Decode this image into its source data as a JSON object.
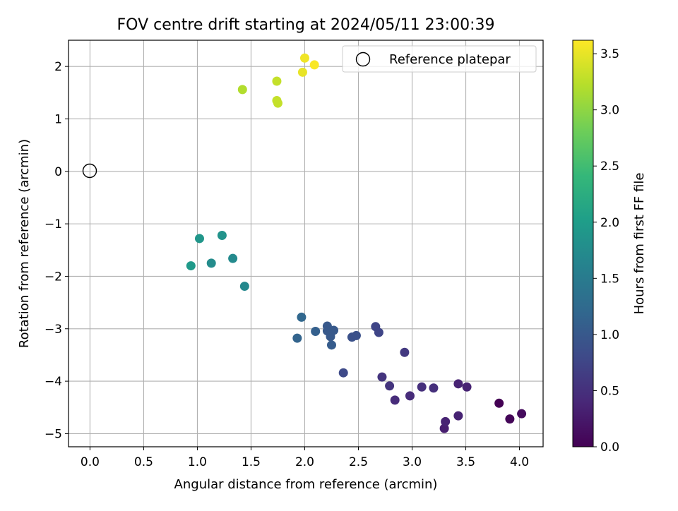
{
  "chart_data": {
    "type": "scatter",
    "title": "FOV centre drift starting at 2024/05/11 23:00:39",
    "xlabel": "Angular distance from reference (arcmin)",
    "ylabel": "Rotation from reference (arcmin)",
    "xlim": [
      -0.2,
      4.22
    ],
    "ylim": [
      -5.25,
      2.5
    ],
    "grid": true,
    "x_ticks": [
      "0.0",
      "0.5",
      "1.0",
      "1.5",
      "2.0",
      "2.5",
      "3.0",
      "3.5",
      "4.0"
    ],
    "y_ticks": [
      "−5",
      "−4",
      "−3",
      "−2",
      "−1",
      "0",
      "1",
      "2"
    ],
    "x_tick_values": [
      0,
      0.5,
      1,
      1.5,
      2,
      2.5,
      3,
      3.5,
      4
    ],
    "y_tick_values": [
      -5,
      -4,
      -3,
      -2,
      -1,
      0,
      1,
      2
    ],
    "legend": {
      "placement": "top-right",
      "entries": [
        "Reference platepar"
      ]
    },
    "reference_point": {
      "x": 0,
      "y": 0,
      "label": "Reference platepar"
    },
    "colorbar": {
      "label": "Hours from first FF file",
      "colormap": "viridis",
      "range": [
        0,
        3.62
      ],
      "ticks": [
        "0.0",
        "0.5",
        "1.0",
        "1.5",
        "2.0",
        "2.5",
        "3.0",
        "3.5"
      ],
      "tick_values": [
        0,
        0.5,
        1,
        1.5,
        2,
        2.5,
        3,
        3.5
      ]
    },
    "points": [
      {
        "x": 3.81,
        "y": -4.42,
        "c": 0.0
      },
      {
        "x": 3.91,
        "y": -4.72,
        "c": 0.05
      },
      {
        "x": 4.02,
        "y": -4.62,
        "c": 0.1
      },
      {
        "x": 3.3,
        "y": -4.9,
        "c": 0.3
      },
      {
        "x": 3.31,
        "y": -4.77,
        "c": 0.35
      },
      {
        "x": 3.43,
        "y": -4.66,
        "c": 0.35
      },
      {
        "x": 3.43,
        "y": -4.05,
        "c": 0.35
      },
      {
        "x": 3.51,
        "y": -4.11,
        "c": 0.35
      },
      {
        "x": 2.84,
        "y": -4.36,
        "c": 0.45
      },
      {
        "x": 2.98,
        "y": -4.28,
        "c": 0.45
      },
      {
        "x": 3.09,
        "y": -4.11,
        "c": 0.5
      },
      {
        "x": 3.2,
        "y": -4.13,
        "c": 0.5
      },
      {
        "x": 2.72,
        "y": -3.92,
        "c": 0.55
      },
      {
        "x": 2.79,
        "y": -4.09,
        "c": 0.55
      },
      {
        "x": 2.93,
        "y": -3.45,
        "c": 0.6
      },
      {
        "x": 2.66,
        "y": -2.96,
        "c": 0.75
      },
      {
        "x": 2.69,
        "y": -3.07,
        "c": 0.75
      },
      {
        "x": 2.36,
        "y": -3.84,
        "c": 0.8
      },
      {
        "x": 2.44,
        "y": -3.16,
        "c": 0.9
      },
      {
        "x": 2.48,
        "y": -3.13,
        "c": 0.9
      },
      {
        "x": 2.21,
        "y": -2.95,
        "c": 1.0
      },
      {
        "x": 2.21,
        "y": -3.04,
        "c": 1.0
      },
      {
        "x": 2.24,
        "y": -3.08,
        "c": 1.0
      },
      {
        "x": 2.27,
        "y": -3.03,
        "c": 1.0
      },
      {
        "x": 2.24,
        "y": -3.15,
        "c": 1.0
      },
      {
        "x": 2.25,
        "y": -3.31,
        "c": 1.05
      },
      {
        "x": 2.1,
        "y": -3.05,
        "c": 1.1
      },
      {
        "x": 1.93,
        "y": -3.18,
        "c": 1.15
      },
      {
        "x": 1.97,
        "y": -2.78,
        "c": 1.2
      },
      {
        "x": 1.44,
        "y": -2.19,
        "c": 1.7
      },
      {
        "x": 1.33,
        "y": -1.66,
        "c": 1.72
      },
      {
        "x": 1.13,
        "y": -1.75,
        "c": 1.75
      },
      {
        "x": 1.23,
        "y": -1.22,
        "c": 1.85
      },
      {
        "x": 1.02,
        "y": -1.28,
        "c": 1.9
      },
      {
        "x": 0.94,
        "y": -1.8,
        "c": 1.95
      },
      {
        "x": 1.42,
        "y": 1.56,
        "c": 3.2
      },
      {
        "x": 1.74,
        "y": 1.72,
        "c": 3.3
      },
      {
        "x": 1.74,
        "y": 1.35,
        "c": 3.3
      },
      {
        "x": 1.75,
        "y": 1.3,
        "c": 3.3
      },
      {
        "x": 1.98,
        "y": 1.89,
        "c": 3.5
      },
      {
        "x": 2.0,
        "y": 2.16,
        "c": 3.55
      },
      {
        "x": 2.09,
        "y": 2.03,
        "c": 3.6
      }
    ]
  }
}
